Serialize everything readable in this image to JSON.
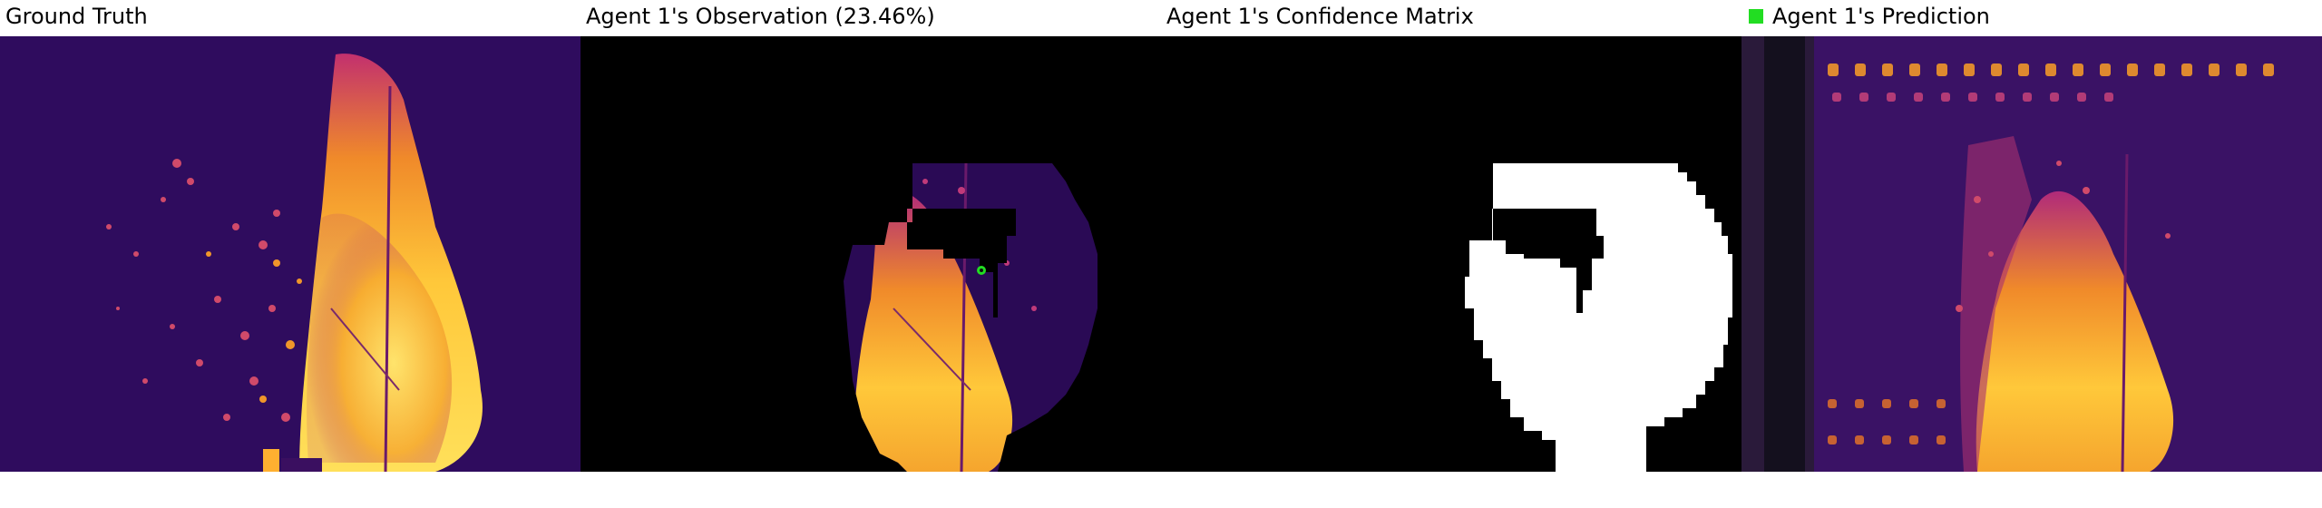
{
  "panels": {
    "ground_truth": {
      "title": "Ground Truth"
    },
    "observation": {
      "title": "Agent 1's Observation (23.46%)"
    },
    "confidence": {
      "title": "Agent 1's Confidence Matrix"
    },
    "prediction": {
      "title": "Agent 1's Prediction",
      "legend_color": "#22dd22"
    }
  },
  "colors": {
    "background_dark": "#2a0a55",
    "fire_bright": "#ffd23a",
    "fire_mid": "#e8602a",
    "fire_low": "#8a1f8a",
    "confidence_on": "#ffffff",
    "confidence_off": "#000000",
    "agent_marker": "#22dd22"
  }
}
